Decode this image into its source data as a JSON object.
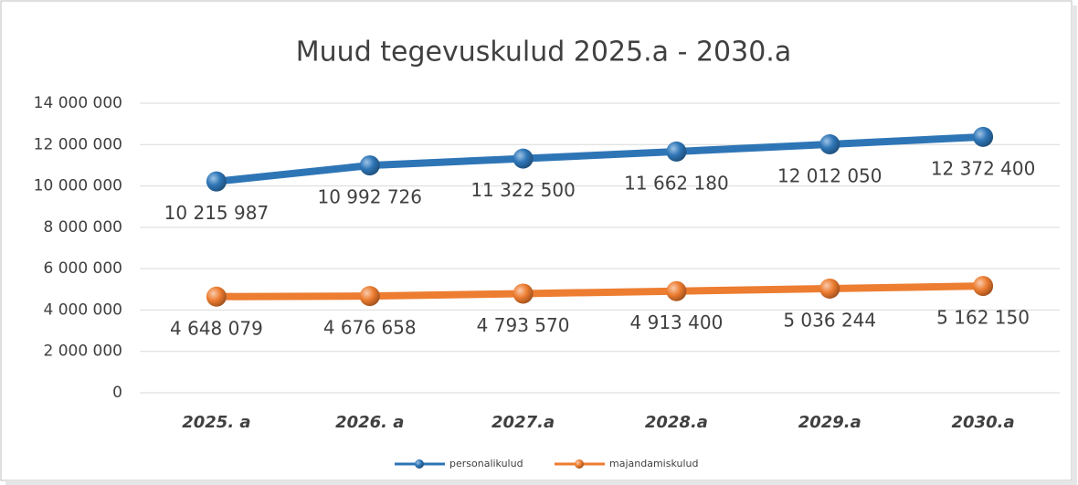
{
  "chart_data": {
    "type": "line",
    "title": "Muud tegevuskulud 2025.a - 2030.a",
    "categories": [
      "2025. a",
      "2026. a",
      "2027.a",
      "2028.a",
      "2029.a",
      "2030.a"
    ],
    "series": [
      {
        "name": "personalikulud",
        "color": "#2e75b6",
        "values": [
          10215987,
          10992726,
          11322500,
          11662180,
          12012050,
          12372400
        ],
        "value_labels": [
          "10 215 987",
          "10 992 726",
          "11 322 500",
          "11 662 180",
          "12 012 050",
          "12 372 400"
        ]
      },
      {
        "name": "majandamiskulud",
        "color": "#ed7d31",
        "values": [
          4648079,
          4676658,
          4793570,
          4913400,
          5036244,
          5162150
        ],
        "value_labels": [
          "4 648 079",
          "4 676 658",
          "4 793 570",
          "4 913 400",
          "5 036 244",
          "5 162 150"
        ]
      }
    ],
    "ylim": [
      0,
      14000000
    ],
    "yticks": [
      0,
      {
        "value": 2000000,
        "label": "2 000 000"
      },
      {
        "value": 4000000,
        "label": "4 000 000"
      },
      {
        "value": 6000000,
        "label": "6 000 000"
      },
      {
        "value": 8000000,
        "label": "8 000 000"
      },
      {
        "value": 10000000,
        "label": "10 000 000"
      },
      {
        "value": 12000000,
        "label": "12 000 000"
      },
      {
        "value": 14000000,
        "label": "14 000 000"
      }
    ],
    "grid": true,
    "legend": "bottom"
  }
}
